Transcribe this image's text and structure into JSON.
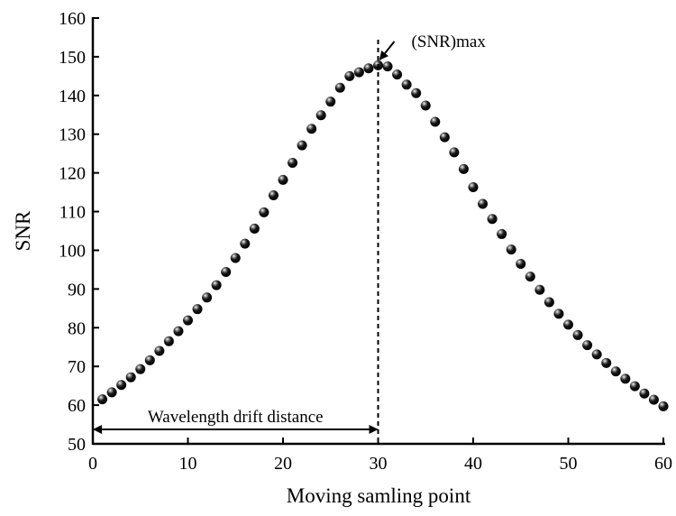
{
  "chart_data": {
    "type": "scatter",
    "title": "",
    "xlabel": "Moving samling point",
    "ylabel": "SNR",
    "xlim": [
      0,
      60
    ],
    "ylim": [
      50,
      160
    ],
    "xticks": [
      0,
      10,
      20,
      30,
      40,
      50,
      60
    ],
    "yticks": [
      50,
      60,
      70,
      80,
      90,
      100,
      110,
      120,
      130,
      140,
      150,
      160
    ],
    "grid": false,
    "series": [
      {
        "name": "SNR",
        "x": [
          1,
          2,
          3,
          4,
          5,
          6,
          7,
          8,
          9,
          10,
          11,
          12,
          13,
          14,
          15,
          16,
          17,
          18,
          19,
          20,
          21,
          22,
          23,
          24,
          25,
          26,
          27,
          28,
          29,
          30,
          31,
          32,
          33,
          34,
          35,
          36,
          37,
          38,
          39,
          40,
          41,
          42,
          43,
          44,
          45,
          46,
          47,
          48,
          49,
          50,
          51,
          52,
          53,
          54,
          55,
          56,
          57,
          58,
          59,
          60
        ],
        "y": [
          61.5,
          63.3,
          65.2,
          67.2,
          69.3,
          71.6,
          74.0,
          76.5,
          79.1,
          81.9,
          84.8,
          87.8,
          91.0,
          94.4,
          98.0,
          101.7,
          105.6,
          109.8,
          114.2,
          118.2,
          122.6,
          127.1,
          131.4,
          134.9,
          138.4,
          142.0,
          145.0,
          146.0,
          147.0,
          147.8,
          147.5,
          145.4,
          142.8,
          140.6,
          137.4,
          133.2,
          129.2,
          125.3,
          121.0,
          116.3,
          112.0,
          108.1,
          104.2,
          100.2,
          96.5,
          93.2,
          89.8,
          86.6,
          83.6,
          80.8,
          78.1,
          75.5,
          73.1,
          70.9,
          68.7,
          66.8,
          64.9,
          63.0,
          61.4,
          59.7
        ]
      }
    ],
    "annotations": {
      "peak_label": "(SNR)max",
      "peak_x": 30,
      "drift_label": "Wavelength drift distance",
      "drift_range": [
        0,
        30
      ]
    }
  }
}
